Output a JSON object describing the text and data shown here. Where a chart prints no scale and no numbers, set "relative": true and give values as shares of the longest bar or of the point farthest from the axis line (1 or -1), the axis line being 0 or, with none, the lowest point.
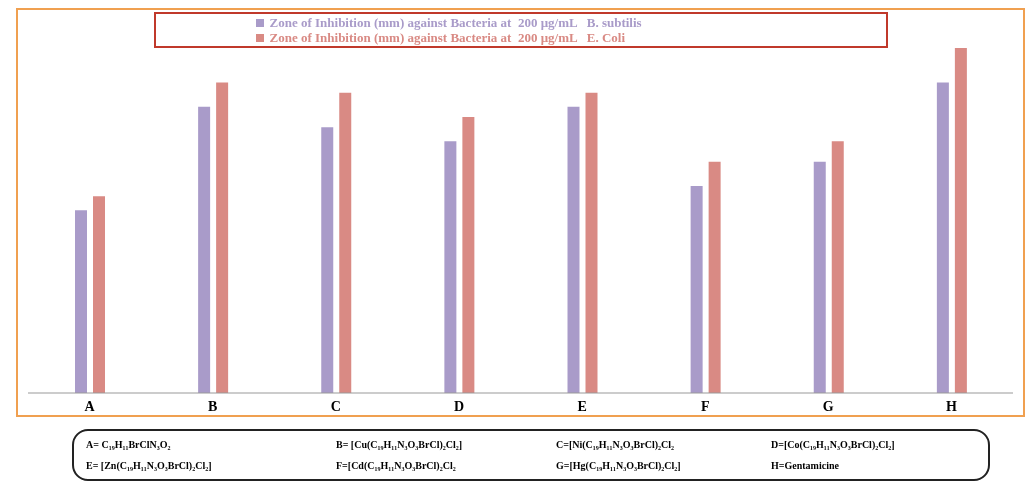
{
  "chart_data": {
    "type": "bar",
    "relative": true,
    "categories": [
      "A",
      "B",
      "C",
      "D",
      "E",
      "F",
      "G",
      "H"
    ],
    "series": [
      {
        "name": "Zone of Inhibition (mm) against Bacteria at  200 μg/mL   B. subtilis",
        "color": "#a99bc9",
        "values": [
          0.53,
          0.83,
          0.77,
          0.73,
          0.83,
          0.6,
          0.67,
          0.9
        ]
      },
      {
        "name": "Zone of Inhibition (mm) against Bacteria at  200 μg/mL   E. Coli",
        "color": "#d98a84",
        "values": [
          0.57,
          0.9,
          0.87,
          0.8,
          0.87,
          0.67,
          0.73,
          1
        ]
      }
    ],
    "legend": "top",
    "grid": false,
    "annotations": [
      "A= C₁₉H₁₁BrClN₃O₂",
      "B= [Cu(C₁₉H₁₁N₃O₃BrCl)₂Cl₂]",
      "C=[Ni(C₁₉H₁₁N₃O₃BrCl)₂Cl₂",
      "D=[Co(C₁₉H₁₁N₃O₃BrCl)₂Cl₂]",
      "E= [Zn(C₁₉H₁₁N₃O₃BrCl)₂Cl₂]",
      "F=[Cd(C₁₉H₁₁N₃O₃BrCl)₂Cl₂",
      "G=[Hg(C₁₉H₁₁N₃O₃BrCl)₂Cl₂]",
      "H=Gentamicine"
    ]
  }
}
